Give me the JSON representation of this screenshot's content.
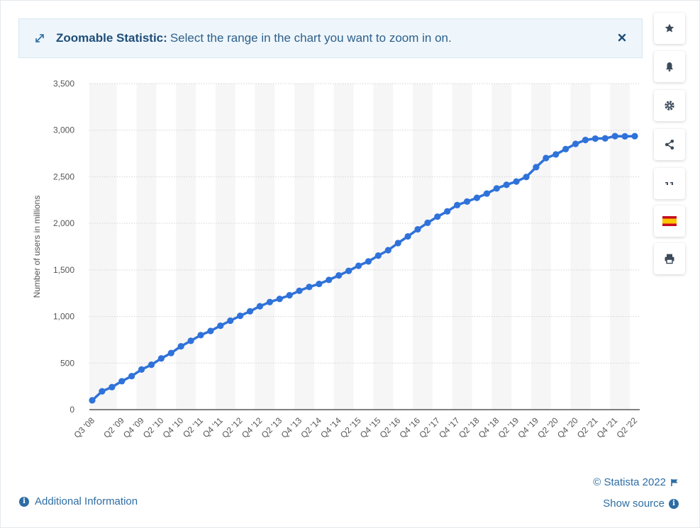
{
  "banner": {
    "title": "Zoomable Statistic:",
    "message": "Select the range in the chart you want to zoom in on.",
    "icon": "expand-icon",
    "close_icon": "close-icon"
  },
  "toolbar": [
    "star-icon",
    "bell-icon",
    "gear-icon",
    "share-icon",
    "quote-icon",
    "spain-flag-icon",
    "print-icon"
  ],
  "footer": {
    "credit": "© Statista 2022",
    "show_source": "Show source",
    "additional_info": "Additional Information"
  },
  "colors": {
    "line": "#2f72d9",
    "accent": "#2e6da4"
  },
  "chart_data": {
    "type": "line",
    "title": "",
    "xlabel": "",
    "ylabel": "Number of users in millions",
    "ylim": [
      0,
      3500
    ],
    "yticks": [
      0,
      500,
      1000,
      1500,
      2000,
      2500,
      3000,
      3500
    ],
    "ytick_labels": [
      "0",
      "500",
      "1,000",
      "1,500",
      "2,000",
      "2,500",
      "3,000",
      "3,500"
    ],
    "grid": true,
    "x_tick_labels": [
      "Q3 '08",
      "Q2 '09",
      "Q4 '09",
      "Q2 '10",
      "Q4 '10",
      "Q2 '11",
      "Q4 '11",
      "Q2 '12",
      "Q4 '12",
      "Q2 '13",
      "Q4 '13",
      "Q2 '14",
      "Q4 '14",
      "Q2 '15",
      "Q4 '15",
      "Q2 '16",
      "Q4 '16",
      "Q2 '17",
      "Q4 '17",
      "Q2 '18",
      "Q4 '18",
      "Q2 '19",
      "Q4 '19",
      "Q2 '20",
      "Q4 '20",
      "Q2 '21",
      "Q4 '21",
      "Q2 '22"
    ],
    "categories": [
      "Q3 '08",
      "Q4 '08",
      "Q1 '09",
      "Q2 '09",
      "Q3 '09",
      "Q4 '09",
      "Q1 '10",
      "Q2 '10",
      "Q3 '10",
      "Q4 '10",
      "Q1 '11",
      "Q2 '11",
      "Q3 '11",
      "Q4 '11",
      "Q1 '12",
      "Q2 '12",
      "Q3 '12",
      "Q4 '12",
      "Q1 '13",
      "Q2 '13",
      "Q3 '13",
      "Q4 '13",
      "Q1 '14",
      "Q2 '14",
      "Q3 '14",
      "Q4 '14",
      "Q1 '15",
      "Q2 '15",
      "Q3 '15",
      "Q4 '15",
      "Q1 '16",
      "Q2 '16",
      "Q3 '16",
      "Q4 '16",
      "Q1 '17",
      "Q2 '17",
      "Q3 '17",
      "Q4 '17",
      "Q1 '18",
      "Q2 '18",
      "Q3 '18",
      "Q4 '18",
      "Q1 '19",
      "Q2 '19",
      "Q3 '19",
      "Q4 '19",
      "Q1 '20",
      "Q2 '20",
      "Q3 '20",
      "Q4 '20",
      "Q1 '21",
      "Q2 '21",
      "Q3 '21",
      "Q4 '21",
      "Q1 '22",
      "Q2 '22"
    ],
    "series": [
      {
        "values": [
          100,
          197,
          242,
          305,
          360,
          431,
          482,
          550,
          608,
          680,
          739,
          800,
          845,
          901,
          955,
          1007,
          1056,
          1110,
          1155,
          1189,
          1228,
          1276,
          1317,
          1350,
          1393,
          1441,
          1490,
          1545,
          1591,
          1654,
          1712,
          1788,
          1860,
          1936,
          2006,
          2072,
          2129,
          2196,
          2234,
          2274,
          2320,
          2375,
          2414,
          2449,
          2498,
          2603,
          2701,
          2740,
          2797,
          2853,
          2895,
          2910,
          2912,
          2936,
          2934,
          2936
        ]
      }
    ]
  }
}
